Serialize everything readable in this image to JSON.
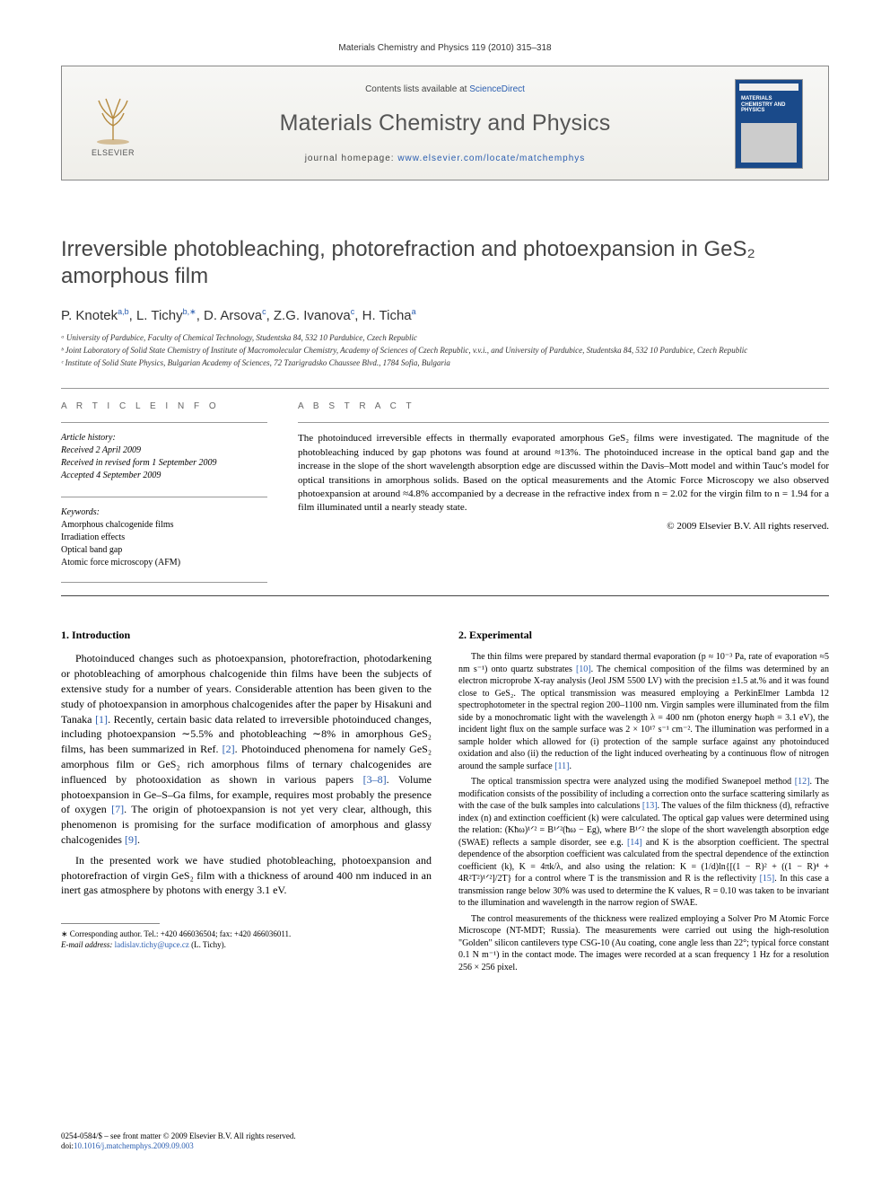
{
  "running_head": "Materials Chemistry and Physics 119 (2010) 315–318",
  "masthead": {
    "contents_prefix": "Contents lists available at ",
    "contents_link": "ScienceDirect",
    "journal": "Materials Chemistry and Physics",
    "homepage_prefix": "journal homepage: ",
    "homepage_url": "www.elsevier.com/locate/matchemphys",
    "cover_title": "MATERIALS CHEMISTRY AND PHYSICS",
    "publisher": "ELSEVIER"
  },
  "title": "Irreversible photobleaching, photorefraction and photoexpansion in GeS₂ amorphous film",
  "authors_html": "P. Knotek<sup>a,b</sup>, L. Tichy<sup>b,∗</sup>, D. Arsova<sup>c</sup>, Z.G. Ivanova<sup>c</sup>, H. Ticha<sup>a</sup>",
  "affiliations": [
    "ᵃ University of Pardubice, Faculty of Chemical Technology, Studentska 84, 532 10 Pardubice, Czech Republic",
    "ᵇ Joint Laboratory of Solid State Chemistry of Institute of Macromolecular Chemistry, Academy of Sciences of Czech Republic, v.v.i., and University of Pardubice, Studentska 84, 532 10 Pardubice, Czech Republic",
    "ᶜ Institute of Solid State Physics, Bulgarian Academy of Sciences, 72 Tzarigradsko Chaussee Blvd., 1784 Sofia, Bulgaria"
  ],
  "article_info_head": "A R T I C L E   I N F O",
  "abstract_head": "A B S T R A C T",
  "history": {
    "label": "Article history:",
    "received": "Received 2 April 2009",
    "revised": "Received in revised form 1 September 2009",
    "accepted": "Accepted 4 September 2009"
  },
  "keywords": {
    "label": "Keywords:",
    "items": [
      "Amorphous chalcogenide films",
      "Irradiation effects",
      "Optical band gap",
      "Atomic force microscopy (AFM)"
    ]
  },
  "abstract": "The photoinduced irreversible effects in thermally evaporated amorphous GeS₂ films were investigated. The magnitude of the photobleaching induced by gap photons was found at around ≈13%. The photoinduced increase in the optical band gap and the increase in the slope of the short wavelength absorption edge are discussed within the Davis–Mott model and within Tauc's model for optical transitions in amorphous solids. Based on the optical measurements and the Atomic Force Microscopy we also observed photoexpansion at around ≈4.8% accompanied by a decrease in the refractive index from n = 2.02 for the virgin film to n = 1.94 for a film illuminated until a nearly steady state.",
  "copyright": "© 2009 Elsevier B.V. All rights reserved.",
  "sections": {
    "s1": {
      "head": "1.  Introduction"
    },
    "s2": {
      "head": "2.  Experimental"
    }
  },
  "paras": {
    "p1": "Photoinduced changes such as photoexpansion, photorefraction, photodarkening or photobleaching of amorphous chalcogenide thin films have been the subjects of extensive study for a number of years. Considerable attention has been given to the study of photoexpansion in amorphous chalcogenides after the paper by Hisakuni and Tanaka [1]. Recently, certain basic data related to irreversible photoinduced changes, including photoexpansion ∼5.5% and photobleaching ∼8% in amorphous GeS₂ films, has been summarized in Ref. [2]. Photoinduced phenomena for namely GeS₂ amorphous film or GeS₂ rich amorphous films of ternary chalcogenides are influenced by photooxidation as shown in various papers [3–8]. Volume photoexpansion in Ge–S–Ga films, for example, requires most probably the presence of oxygen [7]. The origin of photoexpansion is not yet very clear, although, this phenomenon is promising for the surface modification of amorphous and glassy chalcogenides [9].",
    "p2": "In the presented work we have studied photobleaching, photoexpansion and photorefraction of virgin GeS₂ film with a thickness of around 400 nm induced in an inert gas atmosphere by photons with energy 3.1 eV.",
    "p3": "The thin films were prepared by standard thermal evaporation (p ≈ 10⁻³ Pa, rate of evaporation ≈5 nm s⁻¹) onto quartz substrates [10]. The chemical composition of the films was determined by an electron microprobe X-ray analysis (Jeol JSM 5500 LV) with the precision ±1.5 at.% and it was found close to GeS₂. The optical transmission was measured employing a PerkinElmer Lambda 12 spectrophotometer in the spectral region 200–1100 nm. Virgin samples were illuminated from the film side by a monochromatic light with the wavelength λ = 400 nm (photon energy ħωph = 3.1 eV), the incident light flux on the sample surface was 2 × 10¹⁷ s⁻¹ cm⁻². The illumination was performed in a sample holder which allowed for (i) protection of the sample surface against any photoinduced oxidation and also (ii) the reduction of the light induced overheating by a continuous flow of nitrogen around the sample surface [11].",
    "p4": "The optical transmission spectra were analyzed using the modified Swanepoel method [12]. The modification consists of the possibility of including a correction onto the surface scattering similarly as with the case of the bulk samples into calculations [13]. The values of the film thickness (d), refractive index (n) and extinction coefficient (k) were calculated. The optical gap values were determined using the relation: (Kħω)¹ᐟ² = B¹ᐟ²(ħω − Eg), where B¹ᐟ² the slope of the short wavelength absorption edge (SWAE) reflects a sample disorder, see e.g. [14] and K is the absorption coefficient. The spectral dependence of the absorption coefficient was calculated from the spectral dependence of the extinction coefficient (k), K = 4πk/λ, and also using the relation: K = (1/d)ln{[(1 − R)² + ((1 − R)⁴ + 4R²T²)¹ᐟ²]/2T} for a control where T is the transmission and R is the reflectivity [15]. In this case a transmission range below 30% was used to determine the K values, R = 0.10 was taken to be invariant to the illumination and wavelength in the narrow region of SWAE.",
    "p5": "The control measurements of the thickness were realized employing a Solver Pro M Atomic Force Microscope (NT-MDT; Russia). The measurements were carried out using the high-resolution \"Golden\" silicon cantilevers type CSG-10 (Au coating, cone angle less than 22°; typical force constant 0.1 N m⁻¹) in the contact mode. The images were recorded at a scan frequency 1 Hz for a resolution 256 × 256 pixel."
  },
  "footnote": {
    "corr": "∗ Corresponding author. Tel.: +420 466036504; fax: +420 466036011.",
    "email_label": "E-mail address: ",
    "email": "ladislav.tichy@upce.cz",
    "email_who": " (L. Tichy)."
  },
  "footer": {
    "line1": "0254-0584/$ – see front matter © 2009 Elsevier B.V. All rights reserved.",
    "doi_label": "doi:",
    "doi": "10.1016/j.matchemphys.2009.09.003"
  },
  "colors": {
    "link": "#2a5db0",
    "rule": "#888888",
    "masthead_bg_top": "#f7f7f5",
    "masthead_bg_bot": "#efeee9",
    "cover_bg": "#1a4a8a"
  }
}
